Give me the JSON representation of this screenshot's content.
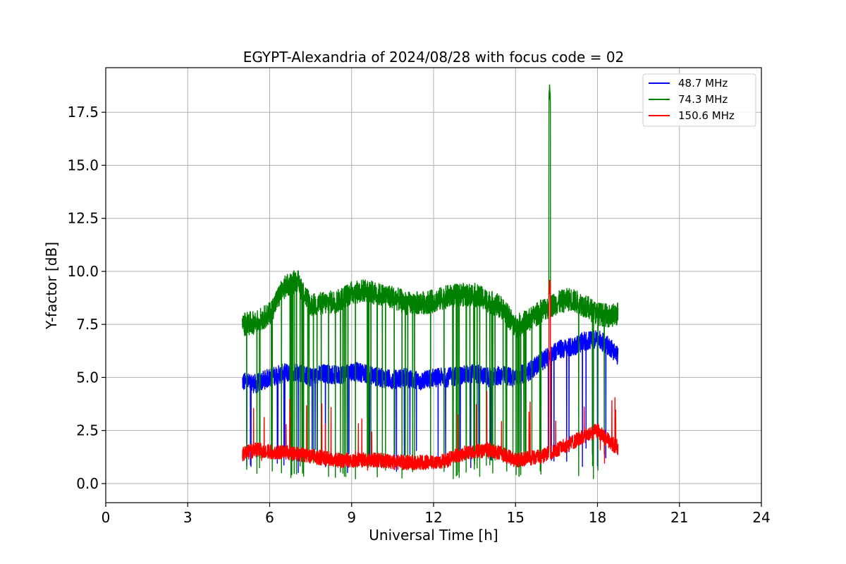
{
  "chart_data": {
    "type": "line",
    "title": "EGYPT-Alexandria of 2024/08/28 with focus code = 02",
    "xlabel": "Universal Time [h]",
    "ylabel": "Y-factor [dB]",
    "xlim": [
      0,
      24
    ],
    "ylim": [
      -0.9,
      19.6
    ],
    "xticks": [
      0,
      3,
      6,
      9,
      12,
      15,
      18,
      21,
      24
    ],
    "xtick_labels": [
      "0",
      "3",
      "6",
      "9",
      "12",
      "15",
      "18",
      "21",
      "24"
    ],
    "yticks": [
      0,
      2.5,
      5,
      7.5,
      10,
      12.5,
      15,
      17.5
    ],
    "ytick_labels": [
      "0.0",
      "2.5",
      "5.0",
      "7.5",
      "10.0",
      "12.5",
      "15.0",
      "17.5"
    ],
    "grid": true,
    "legend_position": "top-right",
    "series": [
      {
        "name": " 48.7 MHz",
        "color": "#0000ff",
        "x": [
          5.0,
          5.5,
          6.0,
          6.5,
          7.0,
          7.5,
          8.0,
          8.5,
          9.0,
          9.5,
          10.0,
          10.5,
          11.0,
          11.5,
          12.0,
          12.5,
          13.0,
          13.5,
          14.0,
          14.5,
          15.0,
          15.5,
          16.0,
          16.5,
          17.0,
          17.5,
          18.0,
          18.5,
          18.75
        ],
        "y": [
          4.8,
          4.7,
          5.0,
          5.2,
          5.3,
          5.0,
          5.2,
          5.1,
          5.3,
          5.2,
          5.0,
          4.9,
          5.0,
          4.8,
          5.0,
          5.0,
          5.1,
          5.2,
          5.0,
          5.1,
          5.0,
          5.3,
          5.8,
          6.3,
          6.4,
          6.7,
          6.8,
          6.4,
          6.0
        ]
      },
      {
        "name": " 74.3 MHz",
        "color": "#008000",
        "x": [
          5.0,
          5.5,
          6.0,
          6.5,
          7.0,
          7.5,
          8.0,
          8.5,
          9.0,
          9.5,
          10.0,
          10.5,
          11.0,
          11.5,
          12.0,
          12.5,
          13.0,
          13.5,
          14.0,
          14.5,
          15.0,
          15.5,
          16.0,
          16.5,
          17.0,
          17.5,
          18.0,
          18.5,
          18.75
        ],
        "y": [
          7.5,
          7.6,
          8.0,
          9.2,
          9.6,
          8.4,
          8.5,
          8.6,
          9.0,
          9.1,
          8.9,
          8.8,
          8.5,
          8.5,
          8.6,
          8.8,
          8.9,
          8.9,
          8.6,
          8.3,
          7.4,
          7.7,
          8.2,
          8.5,
          8.7,
          8.4,
          8.0,
          7.9,
          8.0
        ]
      },
      {
        "name": " 150.6 MHz",
        "color": "#ff0000",
        "x": [
          5.0,
          5.5,
          6.0,
          6.5,
          7.0,
          7.5,
          8.0,
          8.5,
          9.0,
          9.5,
          10.0,
          10.5,
          11.0,
          11.5,
          12.0,
          12.5,
          13.0,
          13.5,
          14.0,
          14.5,
          15.0,
          15.5,
          16.0,
          16.5,
          17.0,
          17.5,
          18.0,
          18.5,
          18.75
        ],
        "y": [
          1.4,
          1.6,
          1.5,
          1.5,
          1.4,
          1.3,
          1.2,
          1.1,
          1.1,
          1.1,
          1.1,
          1.0,
          1.0,
          1.0,
          1.0,
          1.1,
          1.4,
          1.5,
          1.6,
          1.4,
          1.1,
          1.2,
          1.3,
          1.6,
          1.9,
          2.2,
          2.5,
          1.9,
          1.7
        ]
      }
    ],
    "annotations": [
      {
        "series": " 74.3 MHz",
        "x": 16.25,
        "y": 18.8,
        "note_type": "spike"
      },
      {
        "series": " 150.6 MHz",
        "x": 16.25,
        "y": 9.6,
        "note_type": "spike"
      }
    ]
  }
}
